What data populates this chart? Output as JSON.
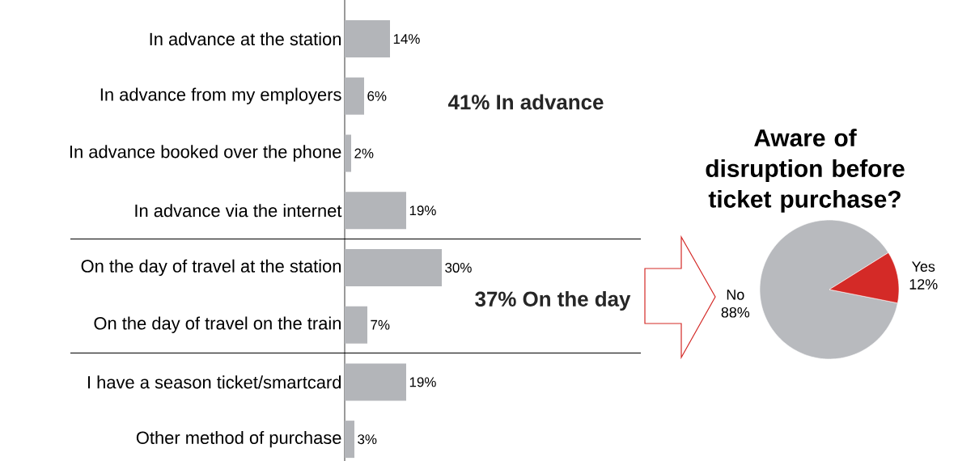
{
  "chart_data": [
    {
      "type": "bar",
      "orientation": "horizontal",
      "categories": [
        "In advance at the station",
        "In advance from my employers",
        "In advance booked over the phone",
        "In advance via the internet",
        "On the day of travel at the station",
        "On the day of travel on the train",
        "I have a season ticket/smartcard",
        "Other method of purchase"
      ],
      "values": [
        14,
        6,
        2,
        19,
        30,
        7,
        19,
        3
      ],
      "value_labels": [
        "14%",
        "6%",
        "2%",
        "19%",
        "30%",
        "7%",
        "19%",
        "3%"
      ],
      "color": "#b3b5b9",
      "xlim": [
        0,
        91.5
      ],
      "tick_labels": "y",
      "annotations": [
        "41% In advance",
        "37% On the day"
      ]
    },
    {
      "type": "pie",
      "title": "Aware of disruption before ticket purchase?",
      "categories": [
        "No",
        "Yes"
      ],
      "values": [
        88,
        12
      ],
      "value_labels": [
        "88%",
        "12%"
      ],
      "colors": [
        "#b8babe",
        "#d42a27"
      ]
    }
  ]
}
